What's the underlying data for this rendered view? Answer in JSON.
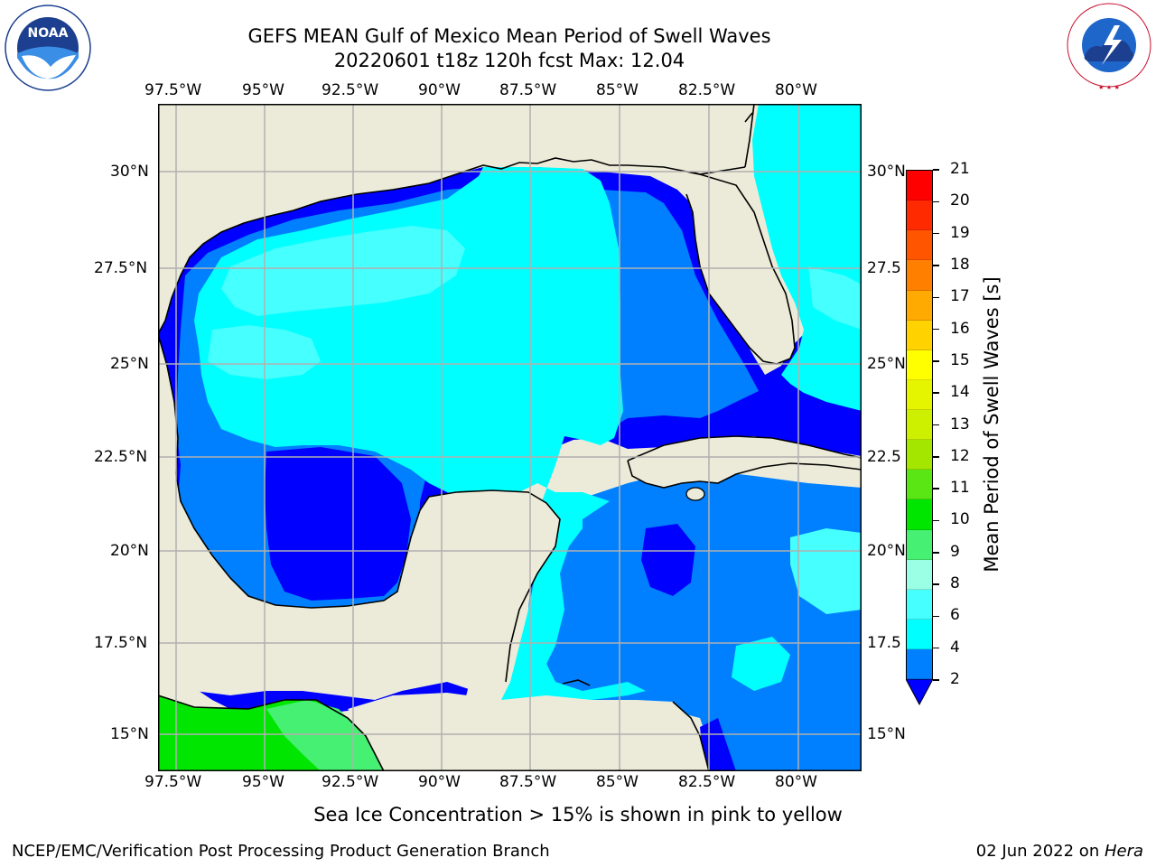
{
  "title": {
    "line1": "GEFS MEAN Gulf of Mexico Mean Period of Swell Waves",
    "line2": "20220601 t18z 120h fcst   Max: 12.04"
  },
  "logos": {
    "noaa_text": "NOAA",
    "noaa_ring": "NATIONAL OCEANIC AND ATMOSPHERIC ADMINISTRATION · U.S. DEPARTMENT OF COMMERCE",
    "nws_ring": "NATIONAL WEATHER SERVICE"
  },
  "map": {
    "lon_labels": [
      "97.5°W",
      "95°W",
      "92.5°W",
      "90°W",
      "87.5°W",
      "85°W",
      "82.5°W",
      "80°W"
    ],
    "lat_labels_left": [
      "30°N",
      "27.5°N",
      "25°N",
      "22.5°N",
      "20°N",
      "17.5°N",
      "15°N"
    ],
    "lat_labels_right": [
      "30°N",
      "27.5",
      "25°N",
      "22.5",
      "20°N",
      "17.5",
      "15°N"
    ],
    "colors": {
      "land": "#ecebd9",
      "grid": "#b0b0b0",
      "coast": "#000000"
    }
  },
  "colorbar": {
    "label": "Mean Period of Swell Waves [s]",
    "ticks": [
      "21",
      "20",
      "19",
      "18",
      "17",
      "16",
      "15",
      "14",
      "13",
      "12",
      "11",
      "10",
      "9",
      "8",
      "6",
      "4",
      "2"
    ],
    "colors_top_to_bottom": [
      "#ff0000",
      "#ff2a00",
      "#ff5500",
      "#ff7f00",
      "#ffaa00",
      "#ffd200",
      "#ffff00",
      "#e5f500",
      "#ccf000",
      "#a5e600",
      "#5ae614",
      "#00e600",
      "#46f072",
      "#9affe5",
      "#46ffff",
      "#00ffff",
      "#0080ff"
    ],
    "extend_color": "#0000ff"
  },
  "notes": {
    "sea_ice": "Sea Ice Concentration > 15% is shown in pink to yellow",
    "producer": "NCEP/EMC/Verification Post Processing Product Generation Branch",
    "date": "02 Jun 2022 on ",
    "machine": "Hera"
  }
}
